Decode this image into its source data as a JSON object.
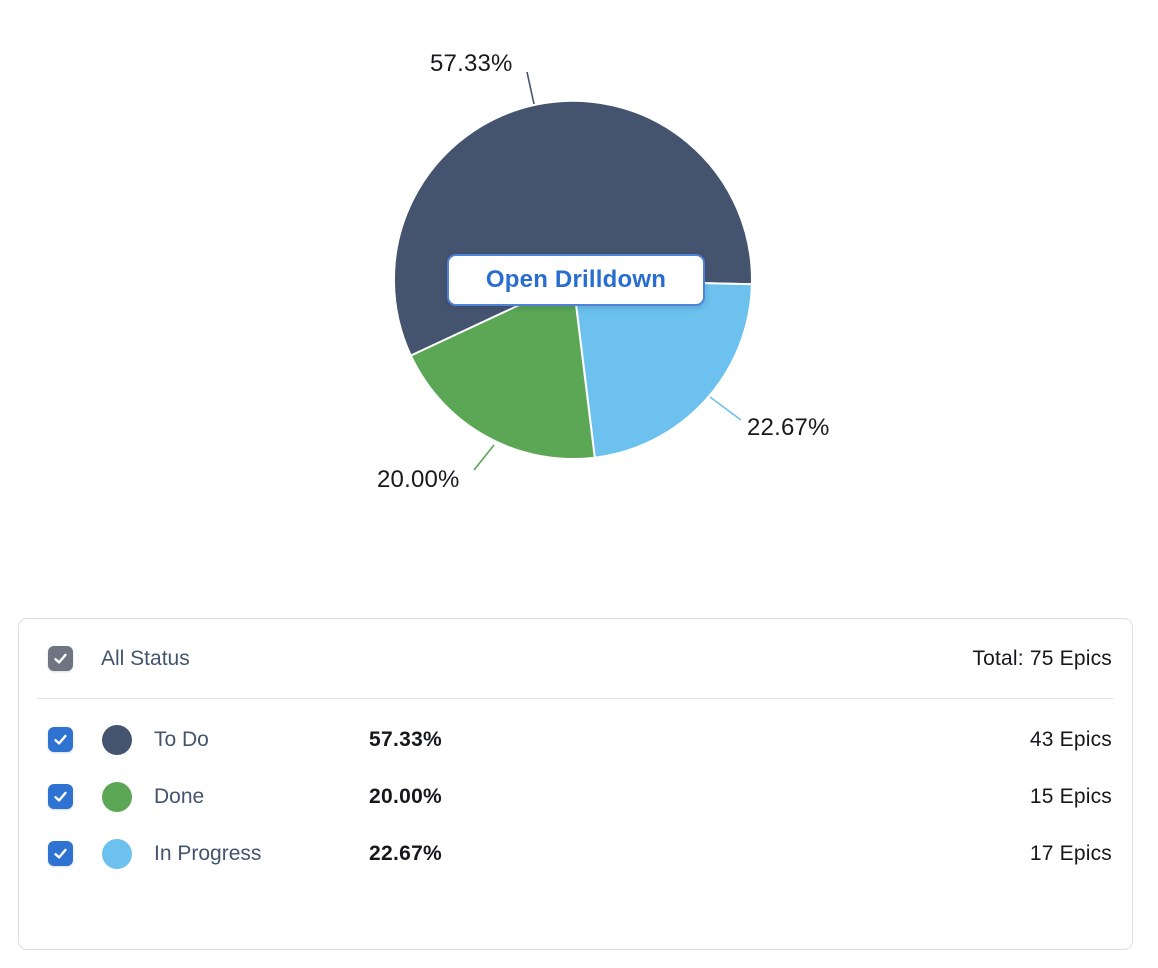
{
  "chart": {
    "drilldown_button_label": "Open Drilldown"
  },
  "chart_data": {
    "type": "pie",
    "title": "",
    "slices": [
      {
        "label": "To Do",
        "percent": 57.33,
        "count": 43,
        "color": "#44546F",
        "data_label": "57.33%"
      },
      {
        "label": "Done",
        "percent": 20.0,
        "count": 15,
        "color": "#5BA755",
        "data_label": "20.00%"
      },
      {
        "label": "In Progress",
        "percent": 22.67,
        "count": 17,
        "color": "#6CC1EE",
        "data_label": "22.67%"
      }
    ],
    "total": 75,
    "unit": "Epics",
    "start_angle_deg": 245,
    "draw_order": [
      "To Do",
      "In Progress",
      "Done"
    ],
    "legend_position": "bottom-table",
    "grid": false
  },
  "legend": {
    "header": {
      "label": "All Status",
      "total": "Total: 75 Epics",
      "checked": true
    },
    "rows": [
      {
        "label": "To Do",
        "percent": "57.33%",
        "count": "43 Epics",
        "checked": true
      },
      {
        "label": "Done",
        "percent": "20.00%",
        "count": "15 Epics",
        "checked": true
      },
      {
        "label": "In Progress",
        "percent": "22.67%",
        "count": "17 Epics",
        "checked": true
      }
    ]
  },
  "colors": {
    "checkbox_checked": "#2E72D2",
    "checkbox_all": "#6E7482",
    "drilldown_text": "#2A6DD0",
    "drilldown_border": "#4F83D8",
    "label_text": "#44546F",
    "value_text": "#16181D",
    "card_border": "#DCDEE6",
    "divider": "#E7E8EC"
  }
}
